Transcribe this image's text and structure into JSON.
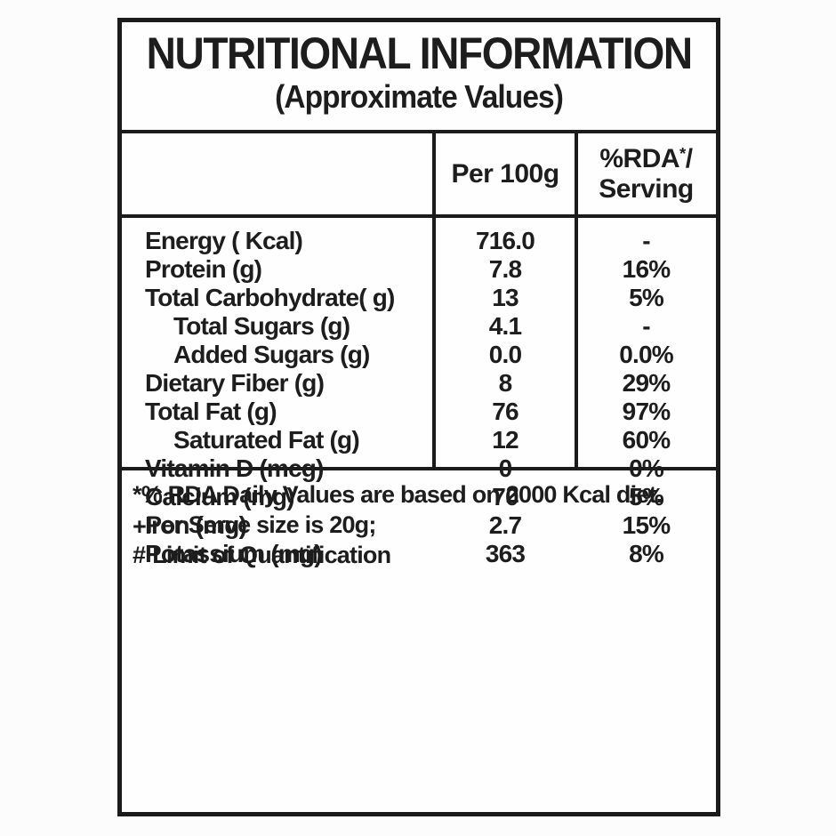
{
  "header": {
    "title": "NUTRITIONAL INFORMATION",
    "subtitle": "(Approximate Values)"
  },
  "columns": {
    "per_100g": "Per 100g",
    "rda": {
      "pre": "%RDA",
      "sup": "*",
      "post": "/",
      "line2": "Serving"
    }
  },
  "nutrients": [
    {
      "name": "Energy ( Kcal)",
      "per_100g": "716.0",
      "rda": "-",
      "indent": false
    },
    {
      "name": "Protein (g)",
      "per_100g": "7.8",
      "rda": "16%",
      "indent": false
    },
    {
      "name": "Total Carbohydrate( g)",
      "per_100g": "13",
      "rda": "5%",
      "indent": false
    },
    {
      "name": "Total Sugars (g)",
      "per_100g": "4.1",
      "rda": "-",
      "indent": true
    },
    {
      "name": "Added Sugars (g)",
      "per_100g": "0.0",
      "rda": "0.0%",
      "indent": true
    },
    {
      "name": "Dietary Fiber (g)",
      "per_100g": "8",
      "rda": "29%",
      "indent": false
    },
    {
      "name": "Total Fat (g)",
      "per_100g": "76",
      "rda": "97%",
      "indent": false
    },
    {
      "name": "Saturated Fat (g)",
      "per_100g": "12",
      "rda": "60%",
      "indent": true
    },
    {
      "name": "Vitamin D (mcg)",
      "per_100g": "0",
      "rda": "0%",
      "indent": false
    },
    {
      "name": "Calcium (mg)",
      "per_100g": "70",
      "rda": "5%",
      "indent": false
    },
    {
      "name": "Iron (mg)",
      "per_100g": "2.7",
      "rda": "15%",
      "indent": false
    },
    {
      "name": "Potassium (mg)",
      "per_100g": "363",
      "rda": "8%",
      "indent": false
    }
  ],
  "footnotes": [
    {
      "symbol": "*",
      "text": "% RDA Daily Values are based on 2000 Kcal diet."
    },
    {
      "symbol": "+",
      "text": "Per Serve size is 20g;"
    },
    {
      "symbol": "#",
      "text": "Limit of Quantification"
    }
  ],
  "colors": {
    "border": "#1b1b1b",
    "text": "#1d1d1d",
    "background": "#fefefe"
  }
}
